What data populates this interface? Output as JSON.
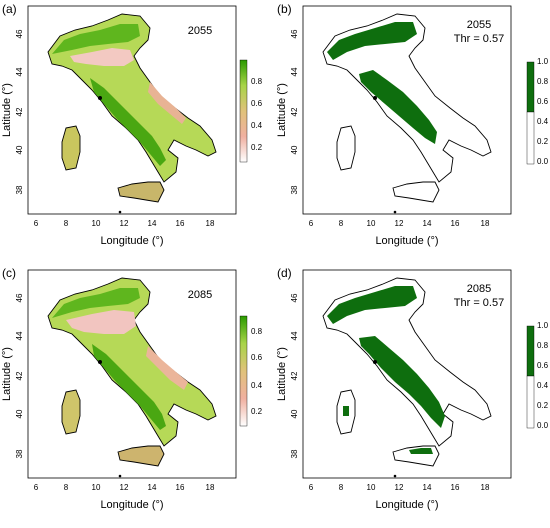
{
  "figure": {
    "x_axis_label": "Longitude (°)",
    "y_axis_label": "Latitude (°)",
    "x_ticks": [
      "6",
      "8",
      "10",
      "12",
      "14",
      "16",
      "18"
    ],
    "y_ticks": [
      "38",
      "40",
      "42",
      "44",
      "46"
    ],
    "colors": {
      "continuous_high": "#2a9a00",
      "continuous_mid": "#9fd23a",
      "continuous_low": "#e9a77c",
      "continuous_zero": "#f5d9d9",
      "binary_suitable": "#0e6e0e",
      "binary_unsuitable": "#ffffff",
      "outline": "#000000"
    }
  },
  "panels": [
    {
      "label": "(a)",
      "year": "2055",
      "threshold": "",
      "map_type": "continuous suitability",
      "legend_ticks": [
        "0.2",
        "0.4",
        "0.6",
        "0.8"
      ]
    },
    {
      "label": "(b)",
      "year": "2055",
      "threshold": "Thr = 0.57",
      "map_type": "binary",
      "legend_ticks": [
        "0.0",
        "0.2",
        "0.4",
        "0.6",
        "0.8",
        "1.0"
      ]
    },
    {
      "label": "(c)",
      "year": "2085",
      "threshold": "",
      "map_type": "continuous suitability",
      "legend_ticks": [
        "0.2",
        "0.4",
        "0.6",
        "0.8"
      ]
    },
    {
      "label": "(d)",
      "year": "2085",
      "threshold": "Thr = 0.57",
      "map_type": "binary",
      "legend_ticks": [
        "0.0",
        "0.2",
        "0.4",
        "0.6",
        "0.8",
        "1.0"
      ]
    }
  ]
}
